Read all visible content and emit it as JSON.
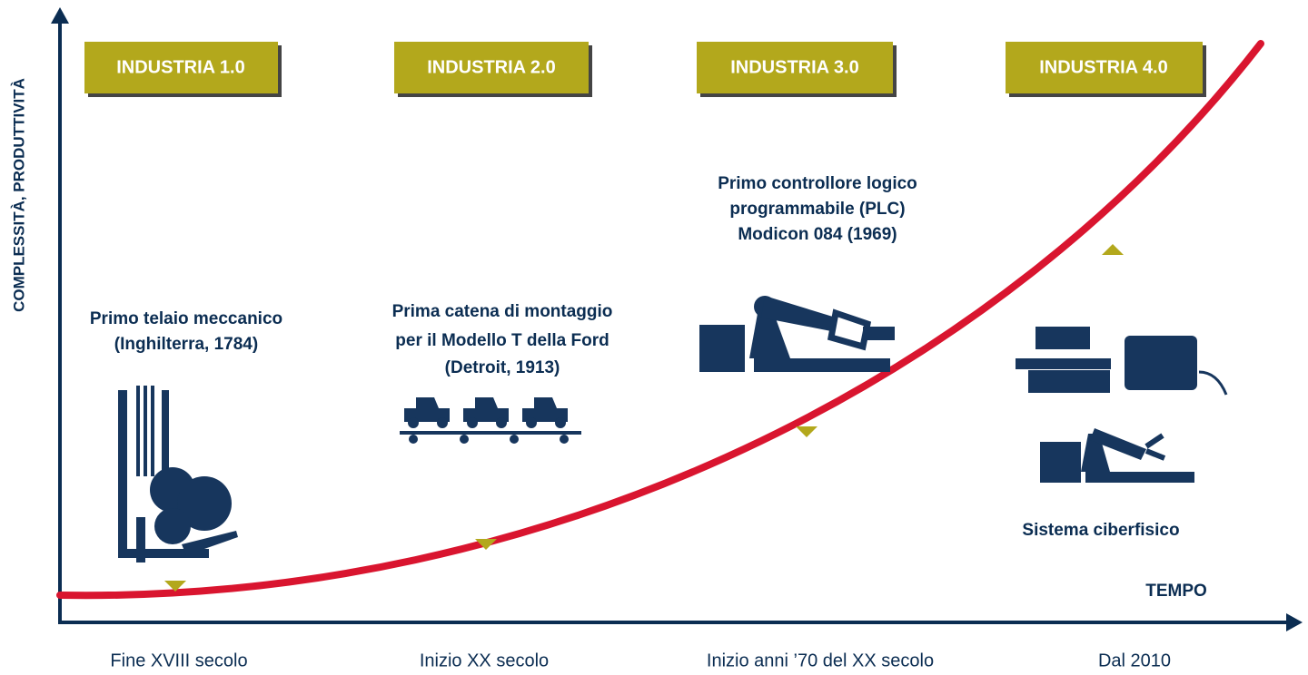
{
  "y_axis_label": "COMPLESSITÀ, PRODUTTIVITÀ",
  "x_axis_label": "TEMPO",
  "stages": [
    {
      "badge": "INDUSTRIA 1.0",
      "description": [
        "Primo telaio meccanico",
        "(Inghilterra, 1784)"
      ],
      "era": "Fine XVIII secolo"
    },
    {
      "badge": "INDUSTRIA 2.0",
      "description": [
        "Prima catena di montaggio",
        "per il Modello T della Ford",
        "(Detroit, 1913)"
      ],
      "era": "Inizio XX secolo"
    },
    {
      "badge": "INDUSTRIA 3.0",
      "description": [
        "Primo controllore logico",
        "programmabile (PLC)",
        "Modicon 084 (1969)"
      ],
      "era": "Inizio anni ’70 del XX secolo"
    },
    {
      "badge": "INDUSTRIA 4.0",
      "description": [
        "Sistema ciberfisico"
      ],
      "era": "Dal 2010"
    }
  ]
}
